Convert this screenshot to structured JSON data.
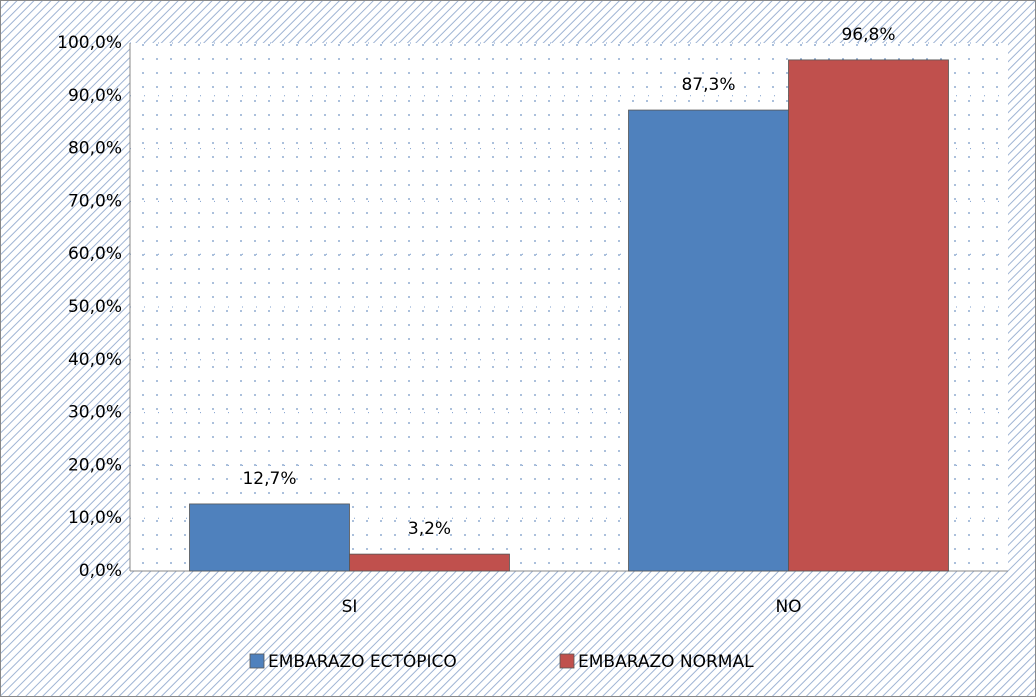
{
  "chart_data": {
    "type": "bar",
    "categories": [
      "SI",
      "NO"
    ],
    "series": [
      {
        "name": "EMBARAZO ECTÓPICO",
        "color": "#4f81bd",
        "values": [
          12.7,
          87.3
        ],
        "value_labels": [
          "12,7%",
          "87,3%"
        ]
      },
      {
        "name": "EMBARAZO NORMAL",
        "color": "#c0504d",
        "values": [
          3.2,
          96.8
        ],
        "value_labels": [
          "3,2%",
          "96,8%"
        ]
      }
    ],
    "ylim": [
      0,
      100
    ],
    "yticks": [
      {
        "value": 0,
        "label": "0,0%"
      },
      {
        "value": 10,
        "label": "10,0%"
      },
      {
        "value": 20,
        "label": "20,0%"
      },
      {
        "value": 30,
        "label": "30,0%"
      },
      {
        "value": 40,
        "label": "40,0%"
      },
      {
        "value": 50,
        "label": "50,0%"
      },
      {
        "value": 60,
        "label": "60,0%"
      },
      {
        "value": 70,
        "label": "70,0%"
      },
      {
        "value": 80,
        "label": "80,0%"
      },
      {
        "value": 90,
        "label": "90,0%"
      },
      {
        "value": 100,
        "label": "100,0%"
      }
    ],
    "grid": true,
    "legend": "bottom"
  }
}
